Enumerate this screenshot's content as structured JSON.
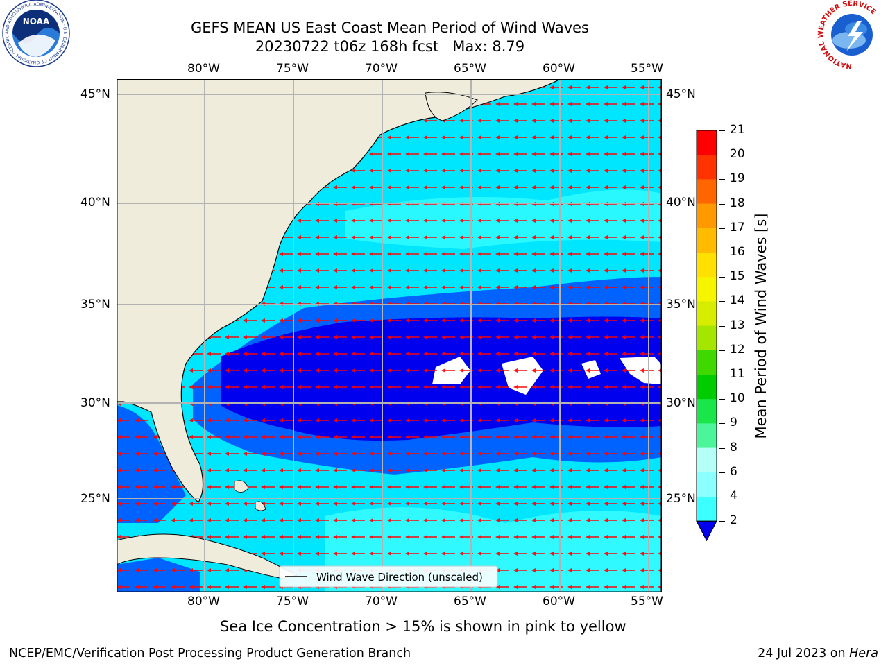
{
  "title": {
    "line1": "GEFS MEAN US East Coast Mean Period of Wind Waves",
    "line2": "20230722 t06z 168h fcst   Max: 8.79"
  },
  "logos": {
    "noaa_text": "NOAA",
    "noaa_ring": "NATIONAL OCEANIC AND ATMOSPHERIC ADMINISTRATION · U.S. DEPARTMENT OF COMMERCE",
    "nws_ring": "NATIONAL WEATHER SERVICE"
  },
  "map": {
    "lon_labels": [
      "80°W",
      "75°W",
      "70°W",
      "65°W",
      "60°W",
      "55°W"
    ],
    "lat_labels": [
      "45°N",
      "40°N",
      "35°N",
      "30°N",
      "25°N"
    ],
    "legend_label": "Wind Wave Direction (unscaled)",
    "land_color": "#efecdc",
    "arrow_color": "#ff0000",
    "max_value": 8.79
  },
  "colorbar": {
    "label": "Mean Period of Wind Waves [s]",
    "ticks": [
      "2",
      "4",
      "6",
      "8",
      "9",
      "10",
      "11",
      "12",
      "13",
      "14",
      "15",
      "16",
      "17",
      "18",
      "19",
      "20",
      "21"
    ],
    "colors": [
      "#0062ff",
      "#00e6ff",
      "#3cffff",
      "#8cffff",
      "#b4fff6",
      "#4df59a",
      "#1ae64b",
      "#00cc00",
      "#3fd900",
      "#a5e600",
      "#d6ed00",
      "#f5f500",
      "#ffe000",
      "#ffbb00",
      "#ff9900",
      "#ff6600",
      "#ff3300",
      "#ff0000"
    ],
    "underflow_color": "#0000ee"
  },
  "notes": {
    "sea_ice": "Sea Ice Concentration > 15% is shown in pink to yellow"
  },
  "footer": {
    "left": "NCEP/EMC/Verification Post Processing Product Generation Branch",
    "right_date": "24 Jul 2023 on",
    "right_host": "Hera"
  }
}
